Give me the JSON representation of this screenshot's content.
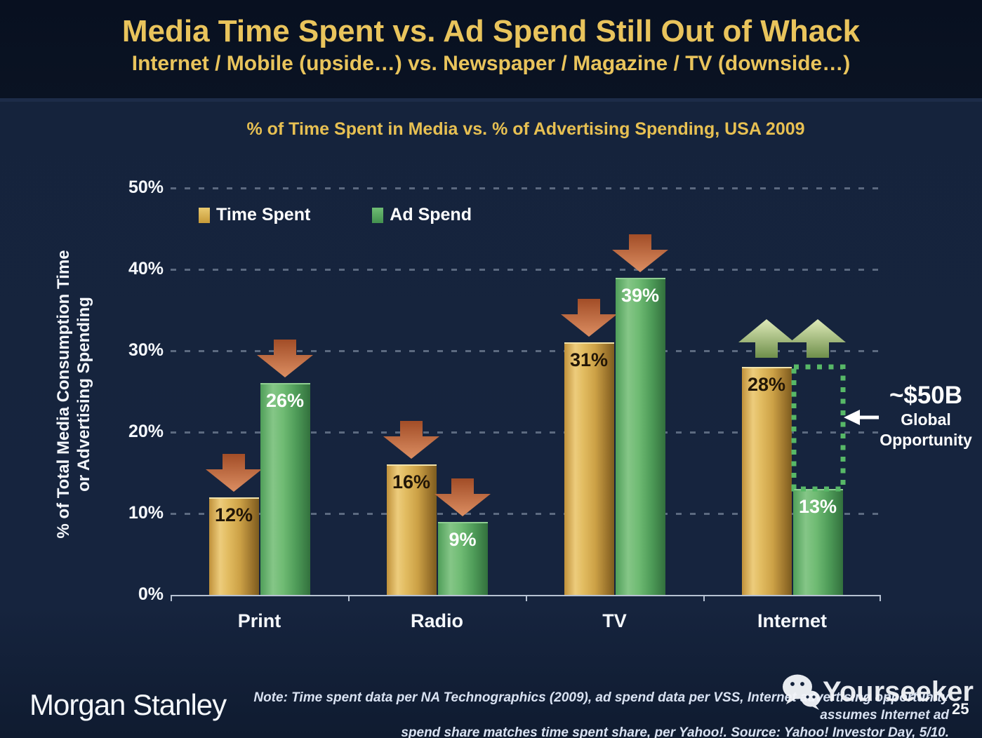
{
  "slide": {
    "title": "Media Time Spent vs. Ad Spend Still Out of Whack",
    "subtitle": "Internet / Mobile (upside…) vs. Newspaper / Magazine / TV (downside…)",
    "page_number": "25"
  },
  "chart_data": {
    "type": "bar",
    "title": "% of Time Spent in Media vs. % of Advertising Spending, USA 2009",
    "ylabel_line1": "% of Total Media Consumption Time",
    "ylabel_line2": "or Advertising Spending",
    "categories": [
      "Print",
      "Radio",
      "TV",
      "Internet"
    ],
    "series": [
      {
        "name": "Time Spent",
        "values": [
          12,
          16,
          31,
          28
        ],
        "arrows": [
          "down",
          "down",
          "down",
          "up"
        ]
      },
      {
        "name": "Ad Spend",
        "values": [
          26,
          9,
          39,
          13
        ],
        "arrows": [
          "down",
          "down",
          "down",
          "up"
        ]
      }
    ],
    "ylim": [
      0,
      50
    ],
    "yticks": [
      "0%",
      "10%",
      "20%",
      "30%",
      "40%",
      "50%"
    ],
    "grid": "dashed horizontal",
    "legend_position": "inside top-left"
  },
  "gap_annotation": {
    "category": "Internet",
    "between": [
      "Time Spent",
      "Ad Spend"
    ],
    "headline": "~$50B",
    "label_line1": "Global",
    "label_line2": "Opportunity"
  },
  "footer": {
    "logo": "Morgan Stanley",
    "note_line1": "Note: Time spent data per NA Technographics (2009), ad spend data per VSS, Internet advertising opportunity assumes Internet ad",
    "note_line2": "spend share matches time spent share, per Yahoo!. Source: Yahoo! Investor Day, 5/10.",
    "watermark": "Yourseeker"
  },
  "colors": {
    "background": "#15233C",
    "header_background": "#0A1323",
    "title_gold": "#E9C45C",
    "bar_gold": "#D9AE4C",
    "bar_green": "#5FAE66",
    "arrow_red": "#C06A42",
    "arrow_green_up": "#A9C380",
    "gap_dotted_green": "#57B867",
    "axis": "#B7C2D3"
  }
}
